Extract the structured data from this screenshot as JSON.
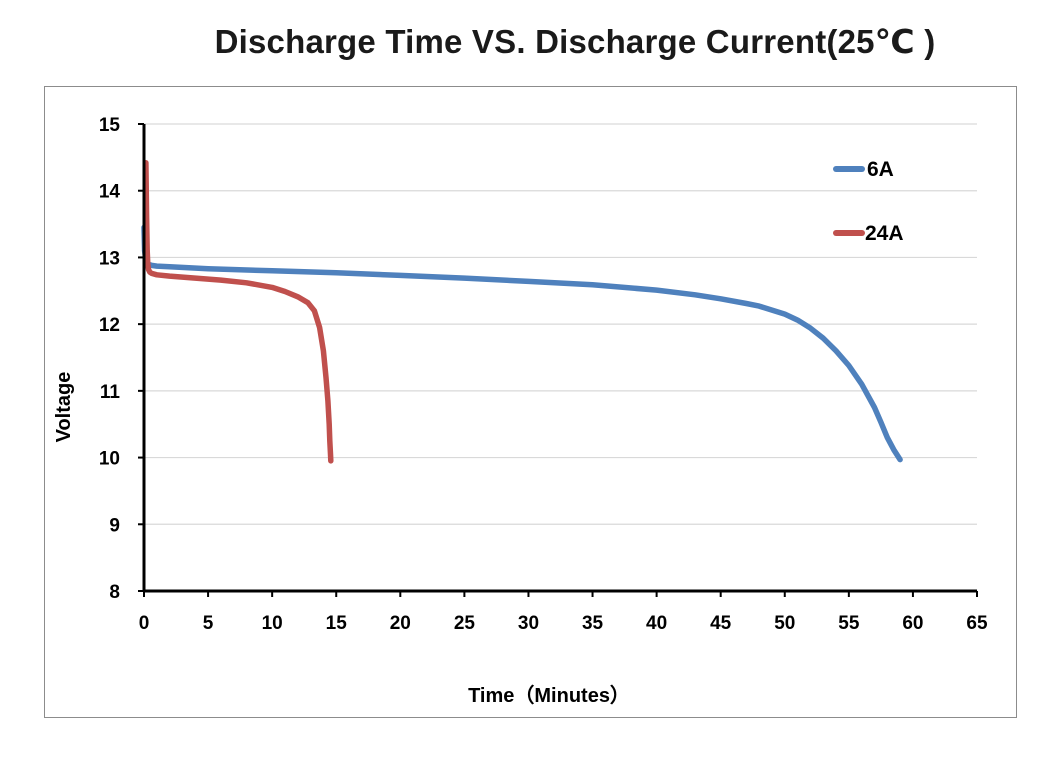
{
  "chart_data": {
    "type": "line",
    "title": "Discharge Time VS. Discharge Current(25℃ )",
    "xlabel": "Time（Minutes）",
    "ylabel": "Voltage",
    "xlim": [
      0,
      65
    ],
    "ylim": [
      8,
      15
    ],
    "xticks": [
      0,
      5,
      10,
      15,
      20,
      25,
      30,
      35,
      40,
      45,
      50,
      55,
      60,
      65
    ],
    "yticks": [
      8,
      9,
      10,
      11,
      12,
      13,
      14,
      15
    ],
    "grid": "horizontal",
    "legend_position": "top-right",
    "series": [
      {
        "name": "6A",
        "color": "#4f81bd",
        "x": [
          0,
          0.05,
          0.15,
          0.3,
          0.6,
          1,
          2,
          5,
          10,
          15,
          20,
          25,
          30,
          35,
          40,
          43,
          45,
          47,
          48,
          50,
          51,
          52,
          53,
          54,
          55,
          56,
          57,
          57.5,
          58,
          58.5,
          59
        ],
        "y": [
          13.45,
          13.1,
          12.95,
          12.9,
          12.88,
          12.87,
          12.86,
          12.83,
          12.8,
          12.77,
          12.73,
          12.69,
          12.64,
          12.59,
          12.51,
          12.44,
          12.38,
          12.31,
          12.27,
          12.15,
          12.06,
          11.94,
          11.79,
          11.6,
          11.38,
          11.1,
          10.75,
          10.53,
          10.3,
          10.12,
          9.97
        ]
      },
      {
        "name": "24A",
        "color": "#c0504d",
        "x": [
          0.15,
          0.2,
          0.25,
          0.3,
          0.35,
          0.45,
          0.6,
          1,
          2,
          4,
          6,
          8,
          10,
          11,
          12,
          12.8,
          13.3,
          13.7,
          14,
          14.2,
          14.35,
          14.45,
          14.5,
          14.55,
          14.58
        ],
        "y": [
          14.42,
          13.6,
          13.1,
          12.9,
          12.82,
          12.78,
          12.76,
          12.74,
          12.72,
          12.69,
          12.66,
          12.62,
          12.55,
          12.49,
          12.41,
          12.32,
          12.2,
          11.95,
          11.6,
          11.2,
          10.85,
          10.5,
          10.25,
          10.05,
          9.95
        ]
      }
    ]
  }
}
